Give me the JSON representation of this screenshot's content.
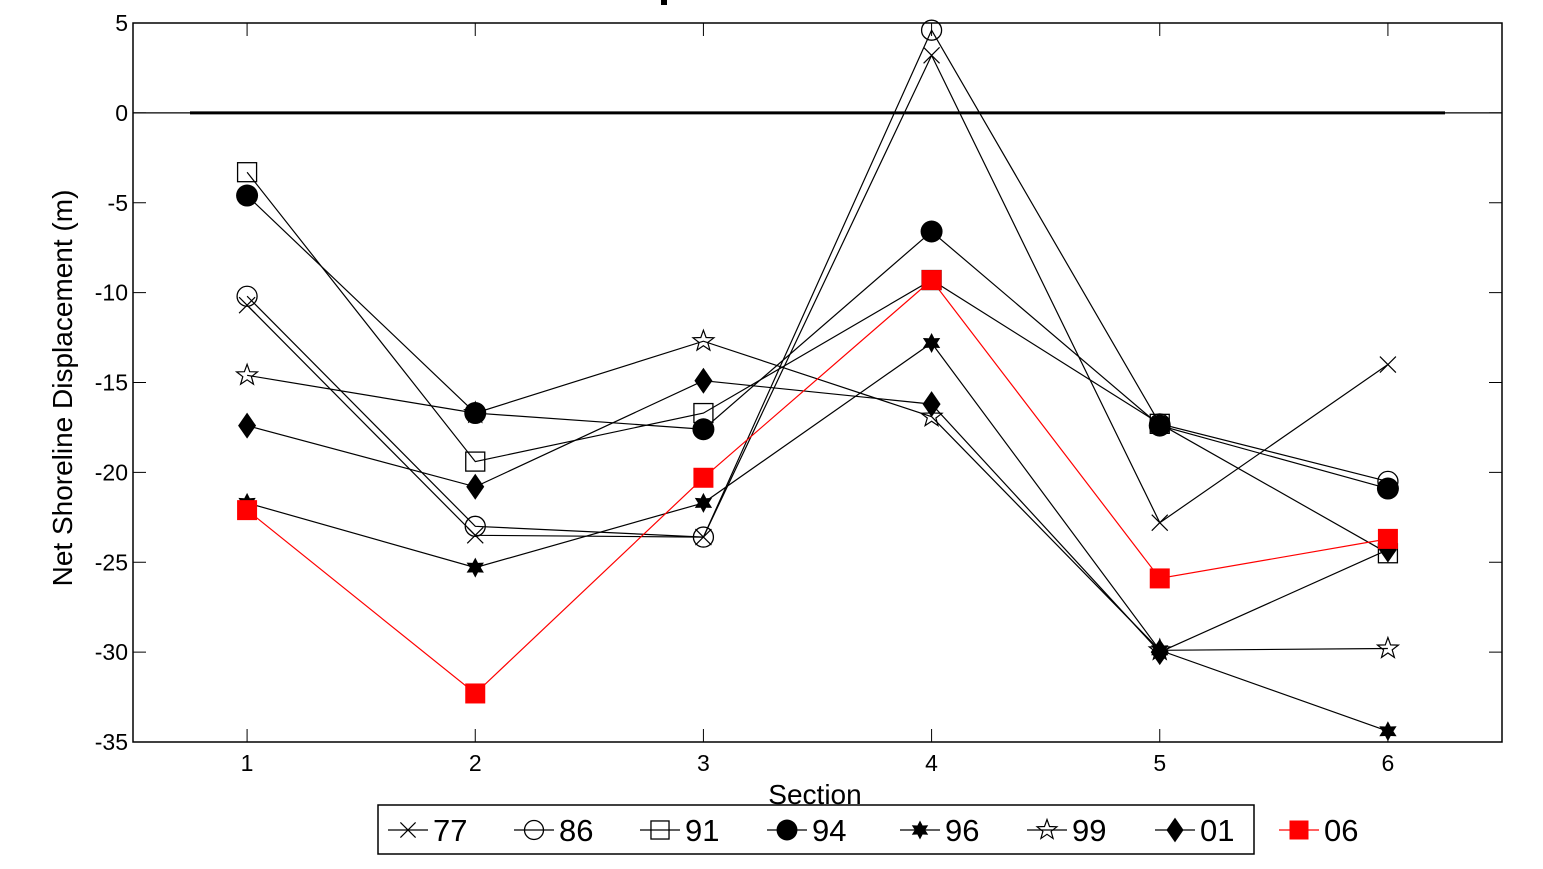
{
  "chart_data": {
    "type": "line",
    "title": "",
    "xlabel": "Section",
    "ylabel": "Net Shoreline Displacement (m)",
    "x": [
      1,
      2,
      3,
      4,
      5,
      6
    ],
    "xlim": [
      0.5,
      6.5
    ],
    "ylim": [
      -35,
      5
    ],
    "xticks": [
      1,
      2,
      3,
      4,
      5,
      6
    ],
    "yticks": [
      5,
      0,
      -5,
      -10,
      -15,
      -20,
      -25,
      -30,
      -35
    ],
    "grid": false,
    "reference_line": {
      "y": 0,
      "color": "#000000"
    },
    "legend_position": "bottom-outside",
    "series": [
      {
        "name": "77",
        "marker": "x",
        "color": "#000000",
        "values": [
          -10.7,
          -23.5,
          -23.6,
          3.2,
          -22.8,
          -14.0
        ]
      },
      {
        "name": "86",
        "marker": "circle-open",
        "color": "#000000",
        "values": [
          -10.2,
          -23.0,
          -23.6,
          4.6,
          -17.3,
          -20.5
        ]
      },
      {
        "name": "91",
        "marker": "square-open",
        "color": "#000000",
        "values": [
          -3.3,
          -19.4,
          -16.7,
          -9.3,
          -17.3,
          -24.5
        ]
      },
      {
        "name": "94",
        "marker": "circle-filled",
        "color": "#000000",
        "values": [
          -4.6,
          -16.7,
          -17.6,
          -6.6,
          -17.4,
          -20.9
        ]
      },
      {
        "name": "96",
        "marker": "hexagram-filled",
        "color": "#000000",
        "values": [
          -21.7,
          -25.3,
          -21.7,
          -12.8,
          -29.9,
          -34.4
        ]
      },
      {
        "name": "99",
        "marker": "pentagram-open",
        "color": "#000000",
        "values": [
          -14.6,
          -16.7,
          -12.7,
          -16.9,
          -29.9,
          -29.8
        ]
      },
      {
        "name": "01",
        "marker": "diamond-filled",
        "color": "#000000",
        "values": [
          -17.4,
          -20.8,
          -14.9,
          -16.2,
          -30.0,
          -24.3
        ]
      },
      {
        "name": "06",
        "marker": "square-filled",
        "color": "#ff0000",
        "values": [
          -22.1,
          -32.3,
          -20.3,
          -9.3,
          -25.9,
          -23.7
        ]
      }
    ]
  }
}
